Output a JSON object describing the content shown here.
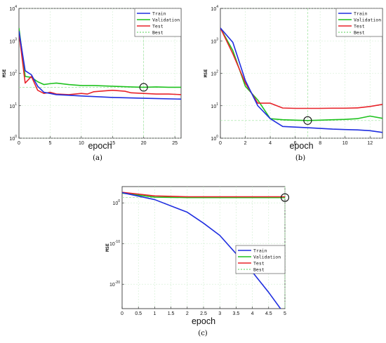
{
  "chart_data": [
    {
      "type": "line",
      "panel": "a",
      "caption": "(a)",
      "xlabel": "epoch",
      "ylabel": "MSE",
      "yscale": "log",
      "xlim": [
        0,
        26
      ],
      "ylim_exp": [
        0,
        4
      ],
      "xticks": [
        0,
        5,
        10,
        15,
        20,
        25
      ],
      "xtick_labels": [
        "0",
        "5",
        "10",
        "15",
        "20",
        "25"
      ],
      "yticks_exp": [
        0,
        1,
        2,
        3,
        4
      ],
      "ytick_labels": [
        [
          "10",
          "0"
        ],
        [
          "10",
          "1"
        ],
        [
          "10",
          "2"
        ],
        [
          "10",
          "3"
        ],
        [
          "10",
          "4"
        ]
      ],
      "legend": {
        "position": "top-right",
        "entries": [
          "Train",
          "Validation",
          "Test",
          "Best"
        ]
      },
      "series": [
        {
          "name": "Train",
          "color": "#1f2ee0",
          "x": [
            0,
            1,
            2,
            3,
            4,
            5,
            6,
            8,
            10,
            15,
            20,
            26
          ],
          "y": [
            2000,
            120,
            90,
            40,
            26,
            24,
            22,
            21,
            20,
            18,
            17,
            16
          ]
        },
        {
          "name": "Validation",
          "color": "#1ec21e",
          "x": [
            0,
            1,
            2,
            3,
            4,
            5,
            6,
            8,
            10,
            12,
            15,
            18,
            20,
            22,
            24,
            26
          ],
          "y": [
            2500,
            80,
            75,
            55,
            45,
            48,
            50,
            45,
            42,
            42,
            40,
            38,
            37,
            38,
            37,
            37
          ]
        },
        {
          "name": "Test",
          "color": "#e8232a",
          "x": [
            0,
            1,
            2,
            3,
            4,
            5,
            6,
            8,
            10,
            11,
            12,
            13,
            15,
            17,
            18,
            20,
            22,
            24,
            26
          ],
          "y": [
            1800,
            50,
            80,
            30,
            24,
            26,
            23,
            22,
            24,
            23,
            27,
            28,
            30,
            28,
            25,
            24,
            23,
            23,
            22
          ]
        }
      ],
      "best": {
        "epoch": 20,
        "value": 37,
        "color": "#1ec21e"
      }
    },
    {
      "type": "line",
      "panel": "b",
      "caption": "(b)",
      "xlabel": "epoch",
      "ylabel": "MSE",
      "yscale": "log",
      "xlim": [
        0,
        13
      ],
      "ylim_exp": [
        0,
        4
      ],
      "xticks": [
        0,
        2,
        4,
        6,
        8,
        10,
        12
      ],
      "xtick_labels": [
        "0",
        "2",
        "4",
        "6",
        "8",
        "10",
        "12"
      ],
      "yticks_exp": [
        0,
        1,
        2,
        3,
        4
      ],
      "ytick_labels": [
        [
          "10",
          "0"
        ],
        [
          "10",
          "1"
        ],
        [
          "10",
          "2"
        ],
        [
          "10",
          "3"
        ],
        [
          "10",
          "4"
        ]
      ],
      "legend": {
        "position": "top-right",
        "entries": [
          "Train",
          "Validation",
          "Test",
          "Best"
        ]
      },
      "series": [
        {
          "name": "Train",
          "color": "#1f2ee0",
          "x": [
            0,
            1,
            2,
            3,
            4,
            5,
            6,
            7,
            8,
            9,
            10,
            11,
            12,
            13
          ],
          "y": [
            2500,
            900,
            60,
            10,
            4,
            2.3,
            2.2,
            2.1,
            2.0,
            1.9,
            1.85,
            1.8,
            1.7,
            1.5
          ]
        },
        {
          "name": "Validation",
          "color": "#1ec21e",
          "x": [
            0,
            1,
            2,
            3,
            4,
            5,
            6,
            7,
            8,
            9,
            10,
            11,
            12,
            13
          ],
          "y": [
            2500,
            500,
            40,
            15,
            4,
            3.7,
            3.6,
            3.5,
            3.6,
            3.7,
            3.8,
            4.0,
            4.8,
            4.1
          ]
        },
        {
          "name": "Test",
          "color": "#e8232a",
          "x": [
            0,
            1,
            2,
            3,
            4,
            5,
            6,
            7,
            8,
            9,
            10,
            11,
            12,
            13
          ],
          "y": [
            2500,
            400,
            50,
            12,
            12,
            8.5,
            8.3,
            8.3,
            8.3,
            8.4,
            8.4,
            8.6,
            9.5,
            11
          ]
        }
      ],
      "best": {
        "epoch": 7,
        "value": 3.5,
        "color": "#1ec21e"
      }
    },
    {
      "type": "line",
      "panel": "c",
      "caption": "(c)",
      "xlabel": "epoch",
      "ylabel": "MSE",
      "yscale": "log",
      "xlim": [
        0,
        5
      ],
      "ylim_exp": [
        -26,
        4
      ],
      "xticks": [
        0,
        0.5,
        1,
        1.5,
        2,
        2.5,
        3,
        3.5,
        4,
        4.5,
        5
      ],
      "xtick_labels": [
        "0",
        "0.5",
        "1",
        "1.5",
        "2",
        "2.5",
        "3",
        "3.5",
        "4",
        "4.5",
        "5"
      ],
      "yticks_exp": [
        -20,
        -10,
        0
      ],
      "ytick_labels": [
        [
          "10",
          "-20"
        ],
        [
          "10",
          "-10"
        ],
        [
          "10",
          "0"
        ]
      ],
      "legend": {
        "position": "center-right",
        "entries": [
          "Train",
          "Validation",
          "Test",
          "Best"
        ]
      },
      "series": [
        {
          "name": "Train",
          "color": "#1f2ee0",
          "x": [
            0,
            1,
            2,
            2.5,
            3,
            3.5,
            4,
            4.5,
            5
          ],
          "y_exp": [
            2.5,
            0.8,
            -2.3,
            -5,
            -8,
            -12.5,
            -17,
            -22,
            -27.5
          ]
        },
        {
          "name": "Validation",
          "color": "#1ec21e",
          "x": [
            0,
            1,
            2,
            3,
            4,
            5
          ],
          "y_exp": [
            2.4,
            1.4,
            1.3,
            1.3,
            1.3,
            1.3
          ]
        },
        {
          "name": "Test",
          "color": "#e8232a",
          "x": [
            0,
            1,
            2,
            3,
            4,
            5
          ],
          "y_exp": [
            2.6,
            1.7,
            1.5,
            1.5,
            1.5,
            1.5
          ]
        }
      ],
      "best": {
        "epoch": 5,
        "value_exp": 1.3,
        "color": "#1ec21e"
      }
    }
  ]
}
